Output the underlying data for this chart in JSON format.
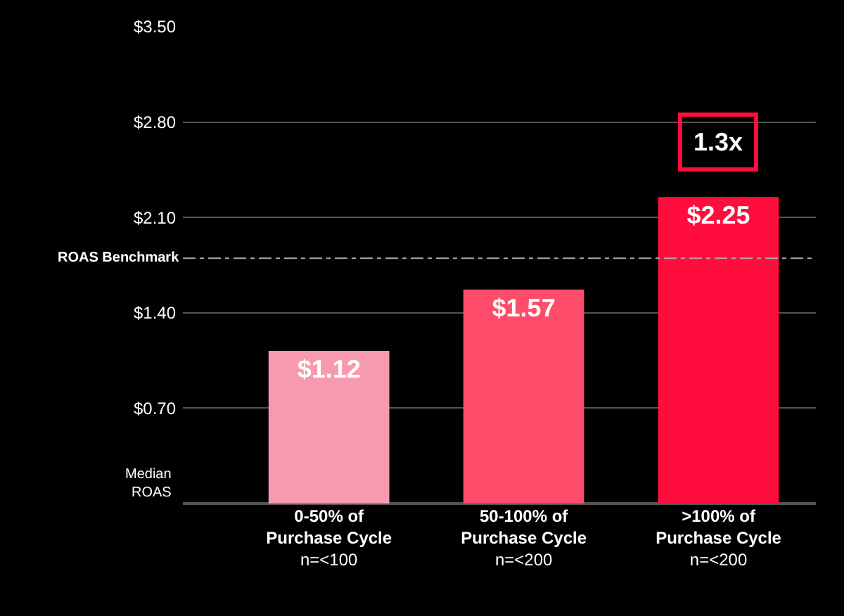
{
  "chart_data": {
    "type": "bar",
    "ylabel": "Median ROAS",
    "categories": [
      "0-50% of\nPurchase Cycle\nn=<100",
      "50-100% of\nPurchase Cycle\nn=<200",
      ">100% of\nPurchase Cycle\nn=<200"
    ],
    "values": [
      1.12,
      1.57,
      2.25
    ],
    "colors": [
      "#f89aaf",
      "#fe4c6a",
      "#fe0d3d"
    ],
    "value_labels": [
      "$1.12",
      "$1.57",
      "$2.25"
    ],
    "ylim": [
      0,
      3.5
    ],
    "yticks": [
      {
        "value": 0.7,
        "label": "$0.70"
      },
      {
        "value": 1.4,
        "label": "$1.40"
      },
      {
        "value": 2.1,
        "label": "$2.10"
      },
      {
        "value": 2.8,
        "label": "$2.80"
      },
      {
        "value": 3.5,
        "label": "$3.50"
      }
    ],
    "grid": "y",
    "legend": false,
    "ref_lines": [
      {
        "axis": "y",
        "value": 1.8,
        "label": "ROAS Benchmark",
        "color": "#aaaaaa",
        "line_style": "dashdot"
      }
    ],
    "annotations": [
      "1.3x"
    ]
  }
}
